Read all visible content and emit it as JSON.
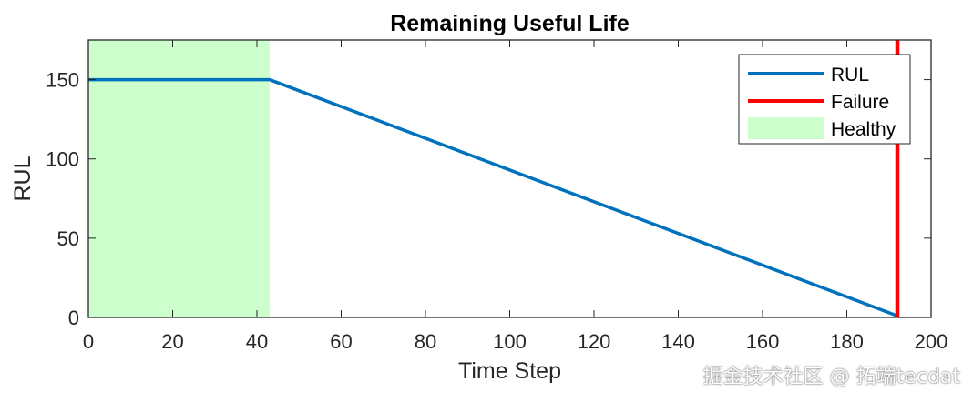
{
  "chart_data": {
    "type": "line",
    "title": "Remaining Useful Life",
    "xlabel": "Time Step",
    "ylabel": "RUL",
    "xlim": [
      0,
      200
    ],
    "ylim": [
      0,
      175
    ],
    "xticks": [
      0,
      20,
      40,
      60,
      80,
      100,
      120,
      140,
      160,
      180,
      200
    ],
    "yticks": [
      0,
      50,
      100,
      150
    ],
    "grid": false,
    "legend_position": "top-right",
    "series": [
      {
        "name": "RUL",
        "color": "#0072BD",
        "x": [
          0,
          43,
          192
        ],
        "y": [
          150,
          150,
          1
        ]
      }
    ],
    "failure": {
      "name": "Failure",
      "color": "#FF0000",
      "x": 192
    },
    "healthy_region": {
      "name": "Healthy",
      "color": "#CCFFCC",
      "x_start": 0,
      "x_end": 43
    },
    "legend": [
      "RUL",
      "Failure",
      "Healthy"
    ]
  },
  "watermark": "掘金技术社区 @ 拓端tecdat"
}
